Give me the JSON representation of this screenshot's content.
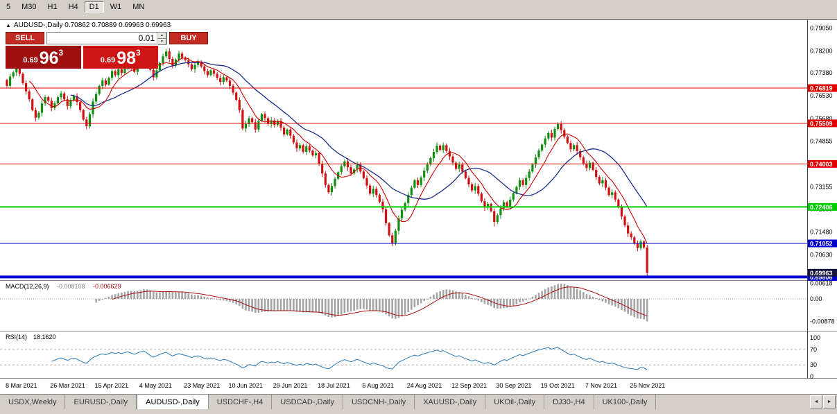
{
  "toolbar": {
    "timeframes": [
      "5",
      "M30",
      "H1",
      "H4",
      "D1",
      "W1",
      "MN"
    ],
    "active": "D1"
  },
  "chart_header": {
    "icon": "▲",
    "text": "AUDUSD-,Daily  0.70862 0.70889 0.69963 0.69963"
  },
  "trade_panel": {
    "sell_label": "SELL",
    "buy_label": "BUY",
    "volume": "0.01",
    "sell_price": {
      "prefix": "0.69",
      "big": "96",
      "sup": "3"
    },
    "buy_price": {
      "prefix": "0.69",
      "big": "98",
      "sup": "3"
    }
  },
  "chart_data": {
    "type": "candlestick",
    "symbol": "AUDUSD-",
    "timeframe": "Daily",
    "ohlc_display": {
      "open": "0.70862",
      "high": "0.70889",
      "low": "0.69963",
      "close": "0.69963"
    },
    "up_color": "#0f8f0f",
    "down_color": "#d01010",
    "price_axis": {
      "ticks": [
        0.7905,
        0.782,
        0.7738,
        0.7653,
        0.7568,
        0.74855,
        0.74005,
        0.73155,
        0.7233,
        0.7148,
        0.7063,
        0.6978
      ]
    },
    "hlines": [
      {
        "price": 0.76819,
        "color": "#e00000",
        "width": 1
      },
      {
        "price": 0.75509,
        "color": "#e00000",
        "width": 1
      },
      {
        "price": 0.74003,
        "color": "#e00000",
        "width": 1
      },
      {
        "price": 0.72406,
        "color": "#00cc00",
        "width": 2
      },
      {
        "price": 0.71052,
        "color": "#0000cc",
        "width": 1
      },
      {
        "price": 0.69806,
        "color": "#0000cc",
        "width": 4
      }
    ],
    "current_price": 0.69963,
    "current_price_badge_color": "#14143c",
    "ma": {
      "fast_period": 8,
      "fast_color": "#cc0000",
      "slow_period": 21,
      "slow_color": "#1a2f8a"
    },
    "candles": {
      "first_open": 0.7712,
      "closes": [
        0.769,
        0.7725,
        0.774,
        0.7762,
        0.7735,
        0.77,
        0.767,
        0.764,
        0.76,
        0.7572,
        0.759,
        0.7625,
        0.7648,
        0.7635,
        0.7608,
        0.7625,
        0.7648,
        0.7662,
        0.764,
        0.7615,
        0.7638,
        0.7652,
        0.763,
        0.76,
        0.7565,
        0.754,
        0.7585,
        0.7632,
        0.766,
        0.769,
        0.771,
        0.7695,
        0.772,
        0.7745,
        0.773,
        0.7752,
        0.7738,
        0.776,
        0.7775,
        0.7758,
        0.7742,
        0.777,
        0.7795,
        0.7812,
        0.7785,
        0.775,
        0.7722,
        0.7748,
        0.7775,
        0.78,
        0.7818,
        0.779,
        0.7765,
        0.7788,
        0.781,
        0.7795,
        0.7785,
        0.777,
        0.7752,
        0.7768,
        0.778,
        0.7762,
        0.7745,
        0.773,
        0.7748,
        0.7735,
        0.772,
        0.7705,
        0.7722,
        0.771,
        0.769,
        0.7665,
        0.7638,
        0.76,
        0.7532,
        0.7548,
        0.757,
        0.7555,
        0.7528,
        0.756,
        0.7585,
        0.757,
        0.7548,
        0.7562,
        0.7545,
        0.756,
        0.7535,
        0.751,
        0.7528,
        0.7505,
        0.748,
        0.7458,
        0.747,
        0.7445,
        0.7465,
        0.745,
        0.7432,
        0.744,
        0.74,
        0.7365,
        0.7322,
        0.7295,
        0.7318,
        0.7345,
        0.737,
        0.7392,
        0.741,
        0.7388,
        0.7365,
        0.738,
        0.7398,
        0.7372,
        0.7348,
        0.732,
        0.729,
        0.7308,
        0.7285,
        0.726,
        0.7232,
        0.718,
        0.7135,
        0.7106,
        0.7152,
        0.7198,
        0.723,
        0.7255,
        0.7285,
        0.7312,
        0.734,
        0.7322,
        0.735,
        0.7375,
        0.7398,
        0.7422,
        0.7445,
        0.7468,
        0.7452,
        0.747,
        0.7448,
        0.7428,
        0.7405,
        0.7382,
        0.7398,
        0.7372,
        0.7348,
        0.7325,
        0.7302,
        0.7318,
        0.729,
        0.7262,
        0.7238,
        0.7252,
        0.7225,
        0.7185,
        0.721,
        0.7235,
        0.7258,
        0.7242,
        0.7268,
        0.7292,
        0.7315,
        0.734,
        0.7322,
        0.7348,
        0.7372,
        0.7398,
        0.7425,
        0.745,
        0.7472,
        0.7495,
        0.7515,
        0.7498,
        0.753,
        0.7548,
        0.7525,
        0.7502,
        0.7478,
        0.7455,
        0.747,
        0.7448,
        0.7425,
        0.7402,
        0.7385,
        0.7405,
        0.7378,
        0.7352,
        0.7328,
        0.734,
        0.7312,
        0.7285,
        0.7295,
        0.7268,
        0.724,
        0.7205,
        0.7172,
        0.7142,
        0.7128,
        0.7105,
        0.7088,
        0.7112,
        0.709,
        0.6996
      ]
    },
    "wick_overrides": {
      "9": {
        "l": 0.7558
      },
      "50": {
        "h": 0.7828
      },
      "121": {
        "l": 0.7102
      },
      "135": {
        "h": 0.748
      },
      "153": {
        "l": 0.7168
      },
      "173": {
        "h": 0.7555
      },
      "201": {
        "l": 0.6993
      }
    },
    "macd": {
      "label": "MACD(12,26,9)",
      "value_main": "-0.008108",
      "value_signal": "-0.006629",
      "axis_labels": [
        "0.00618",
        "0.00",
        "-0.00878"
      ],
      "hist_color": "#a4a4a4",
      "signal_color": "#aa1111"
    },
    "rsi": {
      "label": "RSI(14)",
      "value_text": "18.1620",
      "period": 14,
      "axis_labels": [
        100,
        70,
        30,
        0
      ],
      "levels": [
        70,
        30
      ],
      "line_color": "#2a7ab9"
    },
    "dates": [
      "8 Mar 2021",
      "26 Mar 2021",
      "15 Apr 2021",
      "4 May 2021",
      "23 May 2021",
      "10 Jun 2021",
      "29 Jun 2021",
      "18 Jul 2021",
      "5 Aug 2021",
      "24 Aug 2021",
      "12 Sep 2021",
      "30 Sep 2021",
      "19 Oct 2021",
      "7 Nov 2021",
      "25 Nov 2021"
    ]
  },
  "tabs": {
    "items": [
      "USDX,Weekly",
      "EURUSD-,Daily",
      "AUDUSD-,Daily",
      "USDCHF-,H4",
      "USDCAD-,Daily",
      "USDCNH-,Daily",
      "XAUUSD-,Daily",
      "UKOil-,Daily",
      "DJ30-,H4",
      "UK100-,Daily"
    ],
    "active": "AUDUSD-,Daily",
    "scroll_left_icon": "◄",
    "scroll_right_icon": "►"
  }
}
